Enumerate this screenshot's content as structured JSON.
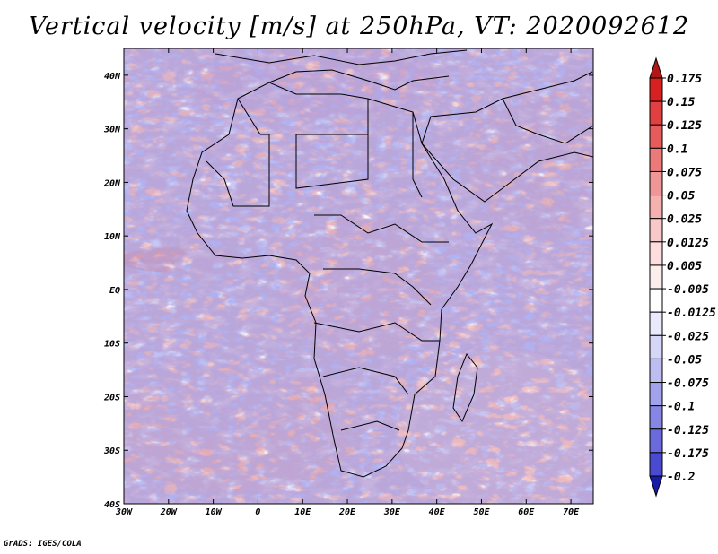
{
  "chart_data": {
    "type": "heatmap",
    "title": "Vertical velocity [m/s] at 250hPa, VT: 2020092612",
    "variable": "Vertical velocity",
    "units": "m/s",
    "level": "250hPa",
    "valid_time": "2020092612",
    "xlabel": "",
    "ylabel": "",
    "xlim": [
      -30,
      75
    ],
    "ylim": [
      -40,
      45
    ],
    "x_ticks": [
      {
        "value": -30,
        "label": "30W"
      },
      {
        "value": -20,
        "label": "20W"
      },
      {
        "value": -10,
        "label": "10W"
      },
      {
        "value": 0,
        "label": "0"
      },
      {
        "value": 10,
        "label": "10E"
      },
      {
        "value": 20,
        "label": "20E"
      },
      {
        "value": 30,
        "label": "30E"
      },
      {
        "value": 40,
        "label": "40E"
      },
      {
        "value": 50,
        "label": "50E"
      },
      {
        "value": 60,
        "label": "60E"
      },
      {
        "value": 70,
        "label": "70E"
      }
    ],
    "y_ticks": [
      {
        "value": 40,
        "label": "40N"
      },
      {
        "value": 30,
        "label": "30N"
      },
      {
        "value": 20,
        "label": "20N"
      },
      {
        "value": 10,
        "label": "10N"
      },
      {
        "value": 0,
        "label": "EQ"
      },
      {
        "value": -10,
        "label": "10S"
      },
      {
        "value": -20,
        "label": "20S"
      },
      {
        "value": -30,
        "label": "30S"
      },
      {
        "value": -40,
        "label": "40S"
      }
    ],
    "colorbar": {
      "levels": [
        {
          "label": "0.175",
          "color": "#d92020"
        },
        {
          "label": "0.15",
          "color": "#e04040"
        },
        {
          "label": "0.125",
          "color": "#e65c5c"
        },
        {
          "label": "0.1",
          "color": "#ec7a7a"
        },
        {
          "label": "0.075",
          "color": "#f19696"
        },
        {
          "label": "0.05",
          "color": "#f5b0b0"
        },
        {
          "label": "0.025",
          "color": "#f9c8c8"
        },
        {
          "label": "0.0125",
          "color": "#fcdede"
        },
        {
          "label": "0.005",
          "color": "#fdeeee"
        },
        {
          "label": "-0.005",
          "color": "#ffffff"
        },
        {
          "label": "-0.0125",
          "color": "#eaeafc"
        },
        {
          "label": "-0.025",
          "color": "#d6d6f8"
        },
        {
          "label": "-0.05",
          "color": "#bdbdf2"
        },
        {
          "label": "-0.075",
          "color": "#a2a2ec"
        },
        {
          "label": "-0.1",
          "color": "#8686e4"
        },
        {
          "label": "-0.125",
          "color": "#6a6adc"
        },
        {
          "label": "-0.175",
          "color": "#4a4ad0"
        },
        {
          "label": "-0.2",
          "color": "#2c2cc4"
        }
      ],
      "max_arrow_color": "#b01818",
      "min_arrow_color": "#1a1aa8"
    }
  },
  "footer": "GrADS: IGES/COLA"
}
